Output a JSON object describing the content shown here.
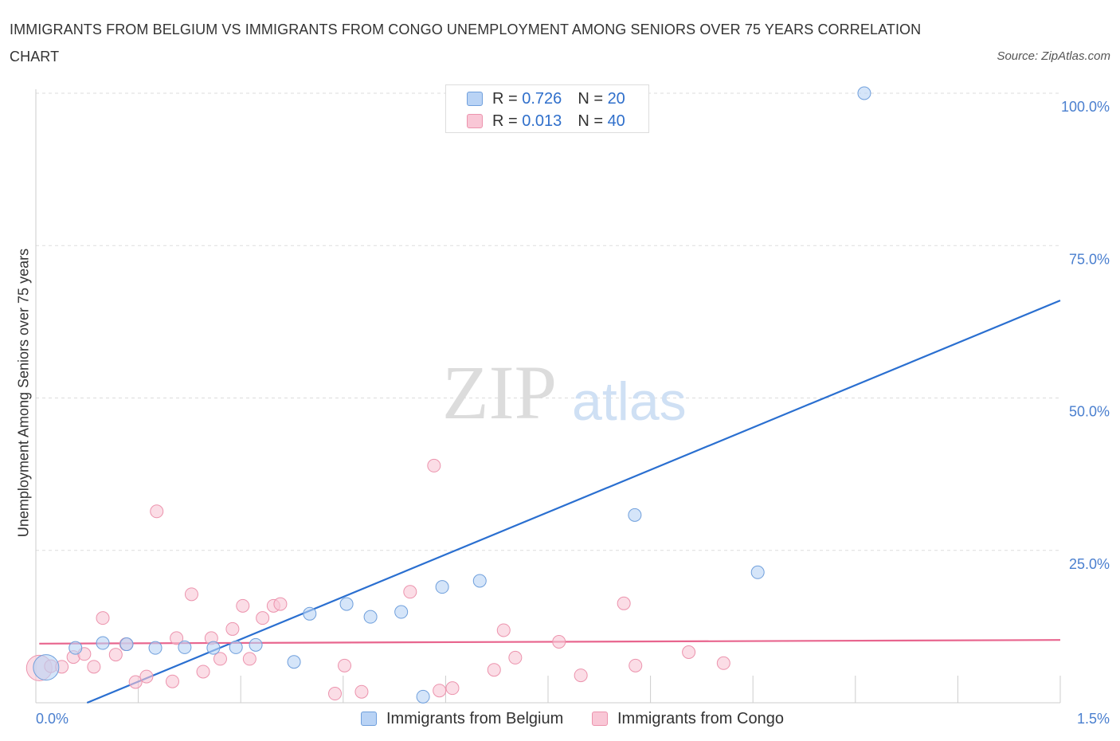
{
  "title": "IMMIGRANTS FROM BELGIUM VS IMMIGRANTS FROM CONGO UNEMPLOYMENT AMONG SENIORS OVER 75 YEARS CORRELATION CHART",
  "source": "Source: ZipAtlas.com",
  "watermark": {
    "zip": "ZIP",
    "atlas": "atlas"
  },
  "legend": {
    "belgium": {
      "r_label": "R = ",
      "r_value": "0.726",
      "n_label": "N = ",
      "n_value": "20"
    },
    "congo": {
      "r_label": "R = ",
      "r_value": "0.013",
      "n_label": "N = ",
      "n_value": "40"
    }
  },
  "colors": {
    "belgium_fill": "#b9d3f5",
    "belgium_stroke": "#6f9fdc",
    "belgium_line": "#2a6fd0",
    "congo_fill": "#f9c7d6",
    "congo_stroke": "#ec93ad",
    "congo_line": "#e8658e",
    "axis_text": "#4a7fcf",
    "grid": "#dddddd"
  },
  "chart_data": {
    "type": "scatter",
    "title": "IMMIGRANTS FROM BELGIUM VS IMMIGRANTS FROM CONGO UNEMPLOYMENT AMONG SENIORS OVER 75 YEARS CORRELATION CHART",
    "xlabel": "",
    "ylabel": "Unemployment Among Seniors over 75 years",
    "xlim": [
      0,
      1.5
    ],
    "ylim": [
      0,
      100
    ],
    "x_tick_labels": [
      "0.0%",
      "1.5%"
    ],
    "y_ticks": [
      25,
      50,
      75,
      100
    ],
    "y_tick_labels": [
      "25.0%",
      "50.0%",
      "75.0%",
      "100.0%"
    ],
    "series": [
      {
        "name": "Immigrants from Belgium",
        "color": "#6f9fdc",
        "r": 0.726,
        "n": 20,
        "trend": {
          "x": [
            0.075,
            1.5
          ],
          "y": [
            0,
            66
          ]
        },
        "points": [
          {
            "x": 0.015,
            "y": 5.8,
            "big": true
          },
          {
            "x": 0.058,
            "y": 9.0
          },
          {
            "x": 0.098,
            "y": 9.8
          },
          {
            "x": 0.133,
            "y": 9.6
          },
          {
            "x": 0.175,
            "y": 9.0
          },
          {
            "x": 0.218,
            "y": 9.1
          },
          {
            "x": 0.26,
            "y": 9.0
          },
          {
            "x": 0.293,
            "y": 9.1
          },
          {
            "x": 0.322,
            "y": 9.5
          },
          {
            "x": 0.378,
            "y": 6.7
          },
          {
            "x": 0.401,
            "y": 14.6
          },
          {
            "x": 0.455,
            "y": 16.2
          },
          {
            "x": 0.49,
            "y": 14.1
          },
          {
            "x": 0.535,
            "y": 14.9
          },
          {
            "x": 0.567,
            "y": 1.0
          },
          {
            "x": 0.595,
            "y": 19.0
          },
          {
            "x": 0.65,
            "y": 20.0
          },
          {
            "x": 0.877,
            "y": 30.8
          },
          {
            "x": 1.057,
            "y": 21.4
          },
          {
            "x": 1.213,
            "y": 100.0
          }
        ]
      },
      {
        "name": "Immigrants from Congo",
        "color": "#ec93ad",
        "r": 0.013,
        "n": 40,
        "trend": {
          "x": [
            0.005,
            1.5
          ],
          "y": [
            9.7,
            10.3
          ]
        },
        "points": [
          {
            "x": 0.005,
            "y": 5.7,
            "big": true
          },
          {
            "x": 0.022,
            "y": 6.0
          },
          {
            "x": 0.038,
            "y": 5.9
          },
          {
            "x": 0.055,
            "y": 7.5
          },
          {
            "x": 0.071,
            "y": 8.0
          },
          {
            "x": 0.085,
            "y": 5.9
          },
          {
            "x": 0.098,
            "y": 13.9
          },
          {
            "x": 0.117,
            "y": 7.9
          },
          {
            "x": 0.132,
            "y": 9.6
          },
          {
            "x": 0.146,
            "y": 3.4
          },
          {
            "x": 0.162,
            "y": 4.3
          },
          {
            "x": 0.177,
            "y": 31.4
          },
          {
            "x": 0.2,
            "y": 3.5
          },
          {
            "x": 0.206,
            "y": 10.6
          },
          {
            "x": 0.228,
            "y": 17.8
          },
          {
            "x": 0.245,
            "y": 5.1
          },
          {
            "x": 0.257,
            "y": 10.6
          },
          {
            "x": 0.27,
            "y": 7.2
          },
          {
            "x": 0.288,
            "y": 12.1
          },
          {
            "x": 0.303,
            "y": 15.9
          },
          {
            "x": 0.313,
            "y": 7.2
          },
          {
            "x": 0.332,
            "y": 13.9
          },
          {
            "x": 0.348,
            "y": 15.9
          },
          {
            "x": 0.358,
            "y": 16.2
          },
          {
            "x": 0.438,
            "y": 1.5
          },
          {
            "x": 0.452,
            "y": 6.1
          },
          {
            "x": 0.477,
            "y": 1.8
          },
          {
            "x": 0.548,
            "y": 18.2
          },
          {
            "x": 0.583,
            "y": 38.9
          },
          {
            "x": 0.591,
            "y": 2.0
          },
          {
            "x": 0.61,
            "y": 2.4
          },
          {
            "x": 0.671,
            "y": 5.4
          },
          {
            "x": 0.685,
            "y": 11.9
          },
          {
            "x": 0.702,
            "y": 7.4
          },
          {
            "x": 0.766,
            "y": 10.0
          },
          {
            "x": 0.798,
            "y": 4.5
          },
          {
            "x": 0.861,
            "y": 16.3
          },
          {
            "x": 0.878,
            "y": 6.1
          },
          {
            "x": 0.956,
            "y": 8.3
          },
          {
            "x": 1.007,
            "y": 6.5
          }
        ]
      }
    ]
  }
}
